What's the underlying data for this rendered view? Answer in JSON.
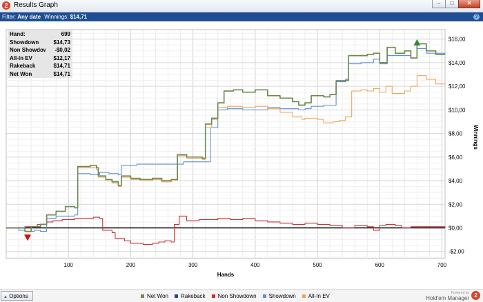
{
  "window": {
    "title": "Results Graph",
    "app_icon": "2"
  },
  "filter": {
    "label": "Filter:",
    "date": "Any date",
    "winnings_label": "Winnings:",
    "winnings_value": "$14,71"
  },
  "stats": [
    {
      "label": "Hand:",
      "value": "699"
    },
    {
      "label": "Showdown",
      "value": "$14,73"
    },
    {
      "label": "Non Showdown",
      "value": "-$0,02"
    },
    {
      "label": "All-In EV",
      "value": "$12,17"
    },
    {
      "label": "Rakeback",
      "value": "$14,71"
    },
    {
      "label": "Net Won",
      "value": "$14,71"
    }
  ],
  "bottom": {
    "options_label": "Options",
    "powered_by": "Powered by",
    "brand": "Hold'em Manager",
    "brand_logo": "2"
  },
  "chart_data": {
    "type": "line",
    "xlabel": "Hands",
    "ylabel": "Winnings",
    "xlim": [
      0,
      705
    ],
    "ylim": [
      -2.6,
      16.8
    ],
    "x_ticks": [
      100,
      200,
      300,
      400,
      500,
      600,
      700
    ],
    "y_ticks": [
      -2,
      0,
      2,
      4,
      6,
      8,
      10,
      12,
      14,
      16
    ],
    "y_tick_labels": [
      "-$2,00",
      "$0,00",
      "$2,00",
      "$4,00",
      "$6,00",
      "$8,00",
      "$10,00",
      "$12,00",
      "$14,00",
      "$16,00"
    ],
    "grid": true,
    "legend": "bottom",
    "max_marker": {
      "x": 660,
      "y": 15.7,
      "color": "#2e8b2e"
    },
    "min_marker": {
      "x": 10,
      "y": -0.8,
      "color": "#cc1111"
    },
    "series": [
      {
        "name": "Net Won",
        "color": "#6f8a4f",
        "points": [
          [
            0,
            0
          ],
          [
            20,
            0
          ],
          [
            30,
            -0.3
          ],
          [
            40,
            0.1
          ],
          [
            55,
            0.3
          ],
          [
            65,
            1.1
          ],
          [
            80,
            1.4
          ],
          [
            95,
            1.8
          ],
          [
            110,
            1.7
          ],
          [
            115,
            5.2
          ],
          [
            135,
            5.3
          ],
          [
            145,
            5.1
          ],
          [
            148,
            4.4
          ],
          [
            160,
            4.1
          ],
          [
            170,
            3.9
          ],
          [
            180,
            3.6
          ],
          [
            185,
            4.4
          ],
          [
            200,
            4.2
          ],
          [
            215,
            4.1
          ],
          [
            235,
            4.2
          ],
          [
            250,
            4.0
          ],
          [
            265,
            4.1
          ],
          [
            275,
            6.2
          ],
          [
            290,
            6.0
          ],
          [
            315,
            5.9
          ],
          [
            320,
            8.8
          ],
          [
            330,
            9.3
          ],
          [
            340,
            10.6
          ],
          [
            350,
            11.6
          ],
          [
            365,
            11.7
          ],
          [
            380,
            11.5
          ],
          [
            400,
            11.7
          ],
          [
            420,
            11.2
          ],
          [
            440,
            11.0
          ],
          [
            460,
            10.7
          ],
          [
            470,
            10.4
          ],
          [
            480,
            10.6
          ],
          [
            490,
            11.2
          ],
          [
            510,
            11.1
          ],
          [
            520,
            11.3
          ],
          [
            530,
            12.4
          ],
          [
            545,
            12.5
          ],
          [
            550,
            14.6
          ],
          [
            565,
            14.6
          ],
          [
            580,
            14.7
          ],
          [
            590,
            14.8
          ],
          [
            600,
            14.0
          ],
          [
            612,
            15.3
          ],
          [
            625,
            14.8
          ],
          [
            640,
            15.0
          ],
          [
            650,
            14.4
          ],
          [
            660,
            15.6
          ],
          [
            675,
            15.0
          ],
          [
            690,
            14.7
          ],
          [
            705,
            14.7
          ]
        ]
      },
      {
        "name": "Rakeback",
        "color": "#27418a",
        "points": [
          [
            0,
            0
          ],
          [
            20,
            0
          ],
          [
            30,
            -0.3
          ],
          [
            40,
            0.1
          ],
          [
            55,
            0.3
          ],
          [
            65,
            1.1
          ],
          [
            80,
            1.4
          ],
          [
            95,
            1.8
          ],
          [
            110,
            1.7
          ],
          [
            115,
            5.2
          ],
          [
            135,
            5.3
          ],
          [
            145,
            5.1
          ],
          [
            148,
            4.4
          ],
          [
            160,
            4.1
          ],
          [
            170,
            3.9
          ],
          [
            180,
            3.6
          ],
          [
            185,
            4.4
          ],
          [
            200,
            4.2
          ],
          [
            215,
            4.1
          ],
          [
            235,
            4.2
          ],
          [
            250,
            4.0
          ],
          [
            265,
            4.1
          ],
          [
            275,
            6.2
          ],
          [
            290,
            6.0
          ],
          [
            315,
            5.9
          ],
          [
            320,
            8.8
          ],
          [
            330,
            9.3
          ],
          [
            340,
            10.6
          ],
          [
            350,
            11.6
          ],
          [
            365,
            11.7
          ],
          [
            380,
            11.5
          ],
          [
            400,
            11.7
          ],
          [
            420,
            11.2
          ],
          [
            440,
            11.0
          ],
          [
            460,
            10.7
          ],
          [
            470,
            10.4
          ],
          [
            480,
            10.6
          ],
          [
            490,
            11.2
          ],
          [
            510,
            11.1
          ],
          [
            520,
            11.3
          ],
          [
            530,
            12.4
          ],
          [
            545,
            12.5
          ],
          [
            550,
            14.6
          ],
          [
            565,
            14.6
          ],
          [
            580,
            14.7
          ],
          [
            590,
            14.8
          ],
          [
            600,
            14.0
          ],
          [
            612,
            15.3
          ],
          [
            625,
            14.8
          ],
          [
            640,
            15.0
          ],
          [
            650,
            14.4
          ],
          [
            660,
            15.6
          ],
          [
            675,
            15.0
          ],
          [
            690,
            14.7
          ],
          [
            705,
            14.7
          ]
        ]
      },
      {
        "name": "Non Showdown",
        "color": "#cc2f2f",
        "points": [
          [
            0,
            0
          ],
          [
            20,
            0
          ],
          [
            30,
            0.1
          ],
          [
            50,
            0.3
          ],
          [
            65,
            0.5
          ],
          [
            75,
            0.6
          ],
          [
            90,
            0.7
          ],
          [
            110,
            0.8
          ],
          [
            130,
            0.8
          ],
          [
            140,
            0.9
          ],
          [
            150,
            0.8
          ],
          [
            155,
            -0.2
          ],
          [
            170,
            -0.4
          ],
          [
            175,
            -0.9
          ],
          [
            190,
            -1.1
          ],
          [
            200,
            -1.3
          ],
          [
            220,
            -1.4
          ],
          [
            235,
            -1.3
          ],
          [
            245,
            -1.2
          ],
          [
            255,
            -1.1
          ],
          [
            265,
            -1.2
          ],
          [
            270,
            0.3
          ],
          [
            278,
            1.0
          ],
          [
            290,
            0.6
          ],
          [
            310,
            0.7
          ],
          [
            340,
            0.8
          ],
          [
            360,
            0.7
          ],
          [
            380,
            0.8
          ],
          [
            400,
            0.6
          ],
          [
            420,
            0.5
          ],
          [
            440,
            0.4
          ],
          [
            460,
            0.3
          ],
          [
            480,
            0.4
          ],
          [
            500,
            0.3
          ],
          [
            520,
            0.2
          ],
          [
            540,
            0.0
          ],
          [
            560,
            0.2
          ],
          [
            580,
            0.1
          ],
          [
            590,
            -0.2
          ],
          [
            600,
            0.2
          ],
          [
            610,
            0.3
          ],
          [
            625,
            0.2
          ],
          [
            635,
            0.0
          ],
          [
            650,
            0.1
          ],
          [
            705,
            0.0
          ]
        ]
      },
      {
        "name": "Showdown",
        "color": "#5b8fd6",
        "points": [
          [
            0,
            0
          ],
          [
            20,
            -0.2
          ],
          [
            30,
            -0.3
          ],
          [
            45,
            -0.2
          ],
          [
            55,
            -0.3
          ],
          [
            65,
            0.8
          ],
          [
            80,
            1.0
          ],
          [
            95,
            1.0
          ],
          [
            110,
            1.1
          ],
          [
            115,
            4.6
          ],
          [
            135,
            4.5
          ],
          [
            150,
            4.7
          ],
          [
            165,
            4.6
          ],
          [
            180,
            4.5
          ],
          [
            185,
            5.3
          ],
          [
            210,
            5.4
          ],
          [
            250,
            5.4
          ],
          [
            270,
            5.4
          ],
          [
            285,
            5.6
          ],
          [
            300,
            5.6
          ],
          [
            320,
            5.6
          ],
          [
            328,
            8.5
          ],
          [
            340,
            10.0
          ],
          [
            355,
            10.1
          ],
          [
            380,
            10.0
          ],
          [
            420,
            10.2
          ],
          [
            440,
            10.1
          ],
          [
            460,
            10.1
          ],
          [
            470,
            10.0
          ],
          [
            480,
            10.1
          ],
          [
            490,
            10.3
          ],
          [
            510,
            10.4
          ],
          [
            530,
            12.5
          ],
          [
            545,
            12.6
          ],
          [
            550,
            13.9
          ],
          [
            570,
            14.0
          ],
          [
            590,
            14.3
          ],
          [
            600,
            13.9
          ],
          [
            612,
            14.6
          ],
          [
            625,
            14.6
          ],
          [
            650,
            14.4
          ],
          [
            660,
            15.2
          ],
          [
            675,
            14.8
          ],
          [
            690,
            14.8
          ],
          [
            705,
            14.7
          ]
        ]
      },
      {
        "name": "All-In EV",
        "color": "#f0a35a",
        "points": [
          [
            0,
            0
          ],
          [
            20,
            0
          ],
          [
            30,
            -0.3
          ],
          [
            40,
            0.1
          ],
          [
            55,
            0.3
          ],
          [
            65,
            1.1
          ],
          [
            80,
            1.4
          ],
          [
            95,
            1.8
          ],
          [
            110,
            1.7
          ],
          [
            115,
            5.1
          ],
          [
            135,
            5.1
          ],
          [
            145,
            4.9
          ],
          [
            148,
            4.3
          ],
          [
            160,
            4.0
          ],
          [
            170,
            3.8
          ],
          [
            180,
            3.5
          ],
          [
            185,
            4.3
          ],
          [
            200,
            4.1
          ],
          [
            215,
            4.0
          ],
          [
            235,
            4.1
          ],
          [
            250,
            3.9
          ],
          [
            265,
            4.0
          ],
          [
            275,
            6.1
          ],
          [
            290,
            5.9
          ],
          [
            315,
            5.8
          ],
          [
            320,
            8.5
          ],
          [
            330,
            9.2
          ],
          [
            340,
            10.2
          ],
          [
            355,
            10.3
          ],
          [
            380,
            10.2
          ],
          [
            400,
            10.3
          ],
          [
            420,
            10.1
          ],
          [
            440,
            9.8
          ],
          [
            460,
            9.4
          ],
          [
            475,
            9.2
          ],
          [
            480,
            9.3
          ],
          [
            500,
            9.2
          ],
          [
            510,
            8.9
          ],
          [
            525,
            9.0
          ],
          [
            535,
            9.1
          ],
          [
            545,
            9.4
          ],
          [
            555,
            11.6
          ],
          [
            570,
            11.7
          ],
          [
            580,
            11.6
          ],
          [
            590,
            11.8
          ],
          [
            600,
            11.5
          ],
          [
            610,
            12.0
          ],
          [
            620,
            11.4
          ],
          [
            640,
            11.6
          ],
          [
            650,
            12.0
          ],
          [
            660,
            12.9
          ],
          [
            675,
            12.6
          ],
          [
            690,
            12.2
          ],
          [
            705,
            12.2
          ]
        ]
      }
    ]
  }
}
